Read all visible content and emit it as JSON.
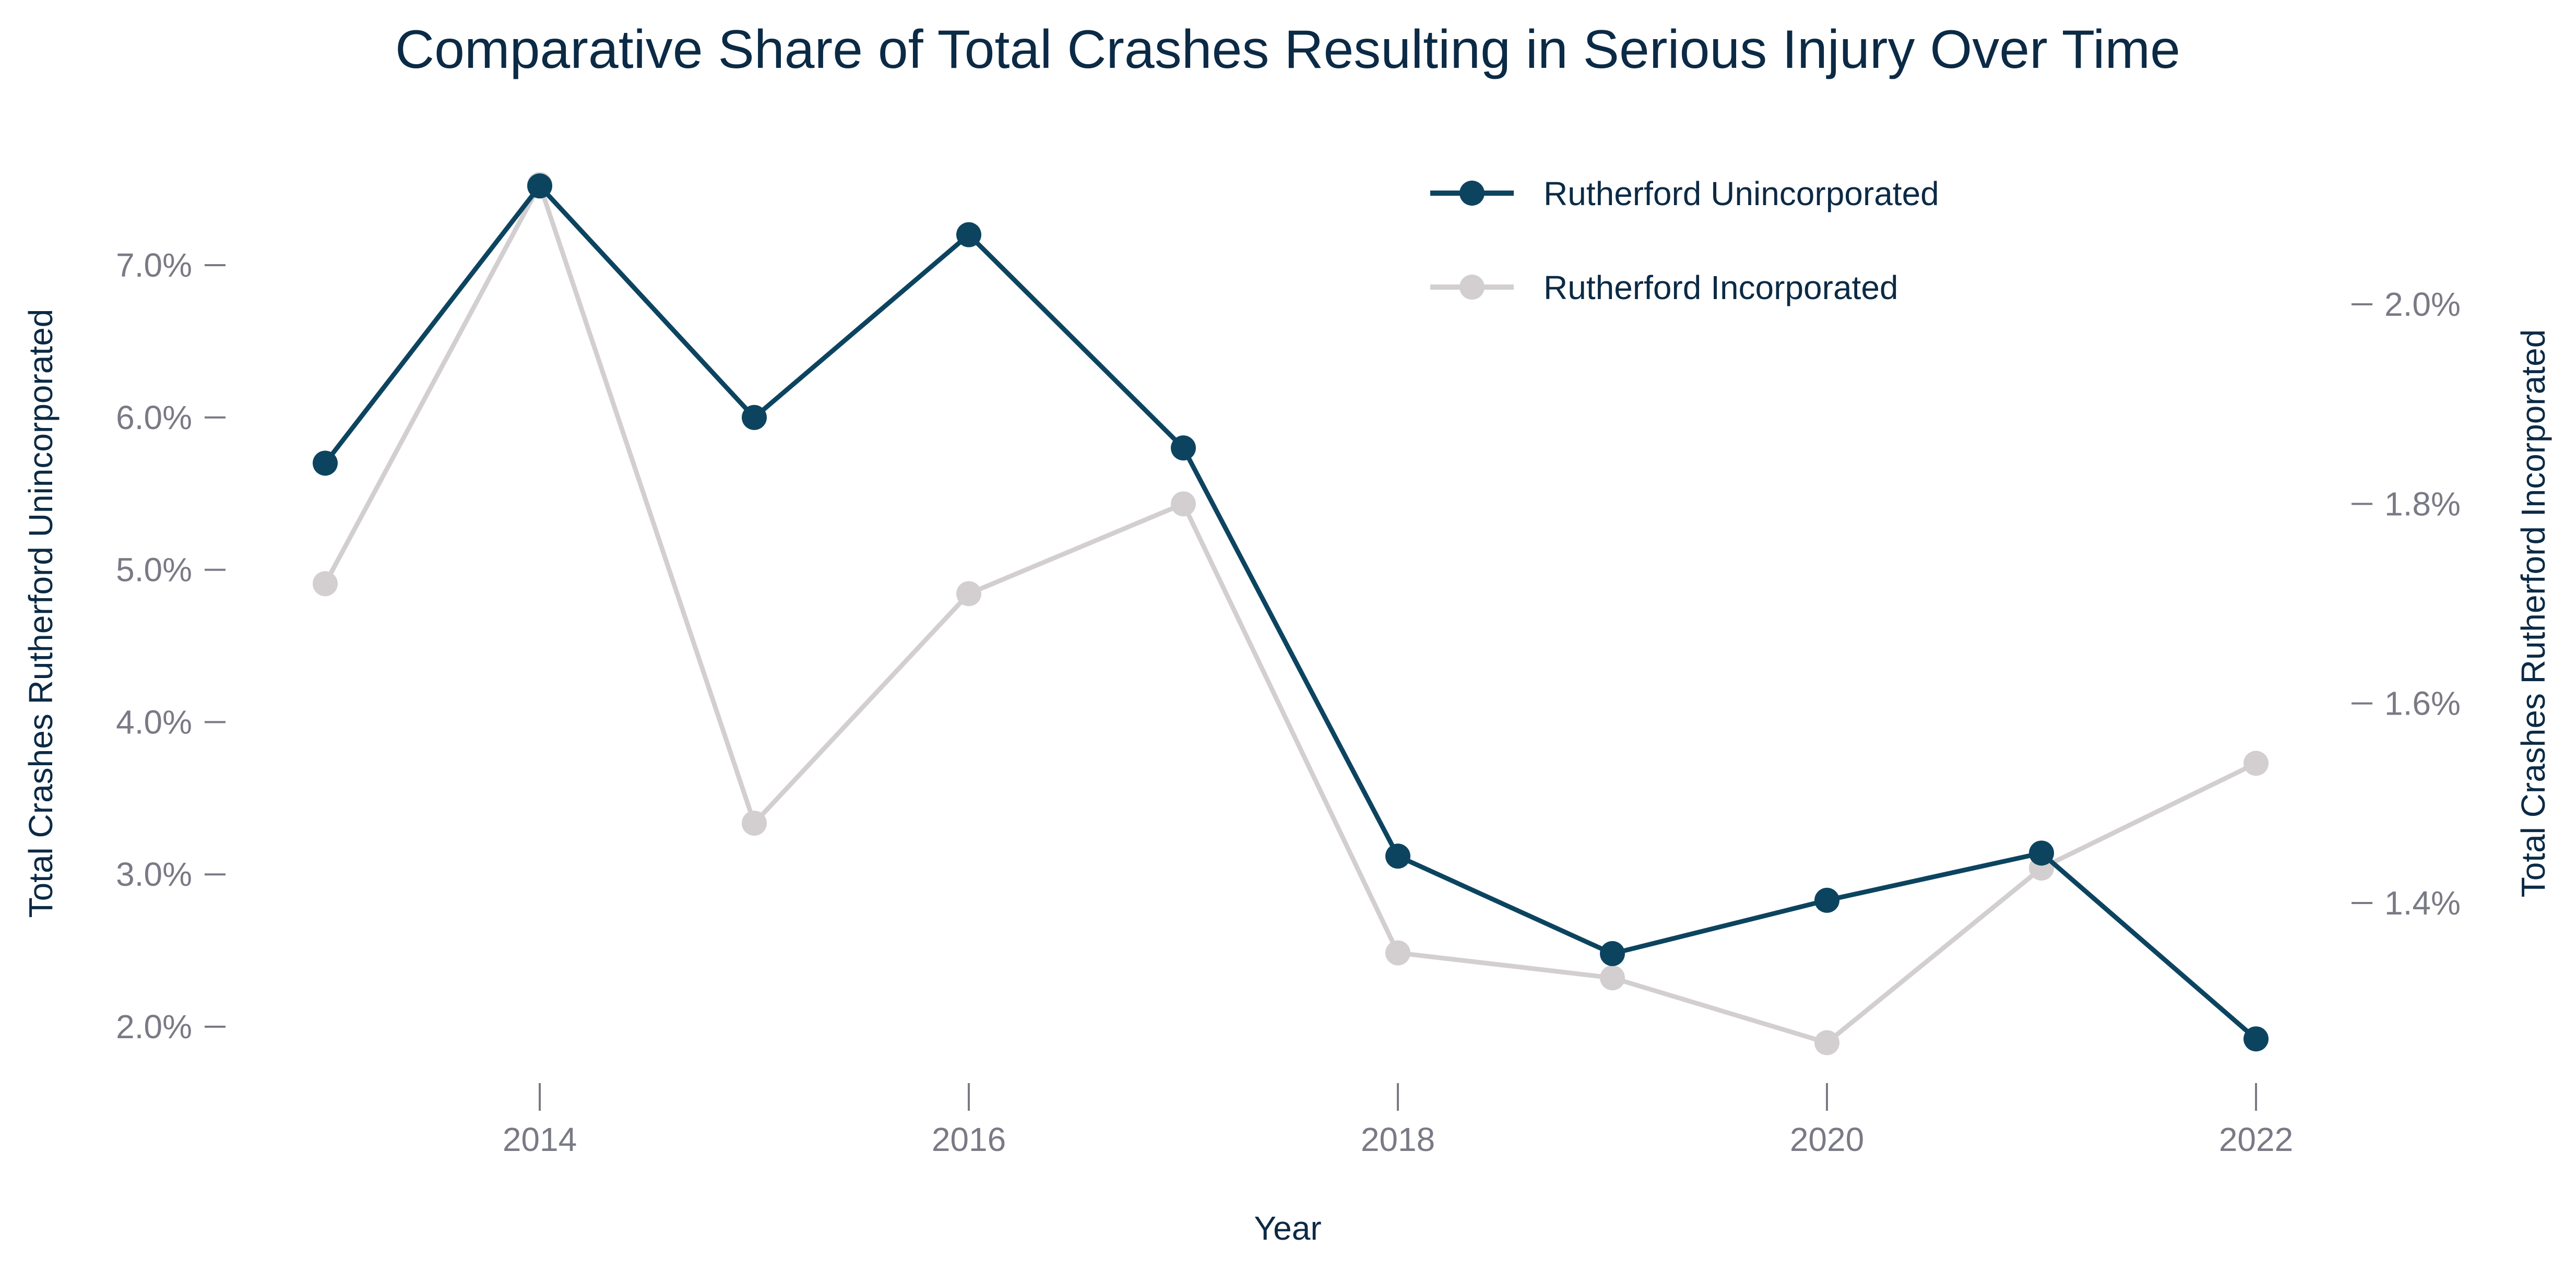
{
  "chart_data": {
    "type": "line",
    "title": "Comparative Share of Total Crashes Resulting in Serious Injury Over Time",
    "xlabel": "Year",
    "ylabel_left": "Total Crashes Rutherford Unincorporated",
    "ylabel_right": "Total Crashes Rutherford Incorporated",
    "x": [
      2013,
      2014,
      2015,
      2016,
      2017,
      2018,
      2019,
      2020,
      2021,
      2022
    ],
    "x_ticks": [
      2014,
      2016,
      2018,
      2020,
      2022
    ],
    "xlim": [
      2012.6,
      2022.5
    ],
    "y_left_ticks": [
      "2.0%",
      "3.0%",
      "4.0%",
      "5.0%",
      "6.0%",
      "7.0%"
    ],
    "y_left_tick_values": [
      2.0,
      3.0,
      4.0,
      5.0,
      6.0,
      7.0
    ],
    "y_left_lim": [
      1.5,
      7.9
    ],
    "y_right_ticks": [
      "1.4%",
      "1.6%",
      "1.8%",
      "2.0%"
    ],
    "y_right_tick_values": [
      1.4,
      1.6,
      1.8,
      2.0
    ],
    "y_right_lim": [
      1.21,
      2.17
    ],
    "grid": false,
    "legend_position": "top-center-right",
    "series": [
      {
        "name": "Rutherford Unincorporated",
        "axis": "left",
        "color": "#0c4460",
        "values": [
          5.7,
          7.52,
          6.0,
          7.2,
          5.8,
          3.12,
          2.48,
          2.83,
          3.14,
          1.92
        ]
      },
      {
        "name": "Rutherford Incorporated",
        "axis": "right",
        "color": "#d3cfd0",
        "values": [
          1.72,
          2.12,
          1.48,
          1.71,
          1.8,
          1.35,
          1.325,
          1.26,
          1.435,
          1.54
        ]
      }
    ]
  }
}
